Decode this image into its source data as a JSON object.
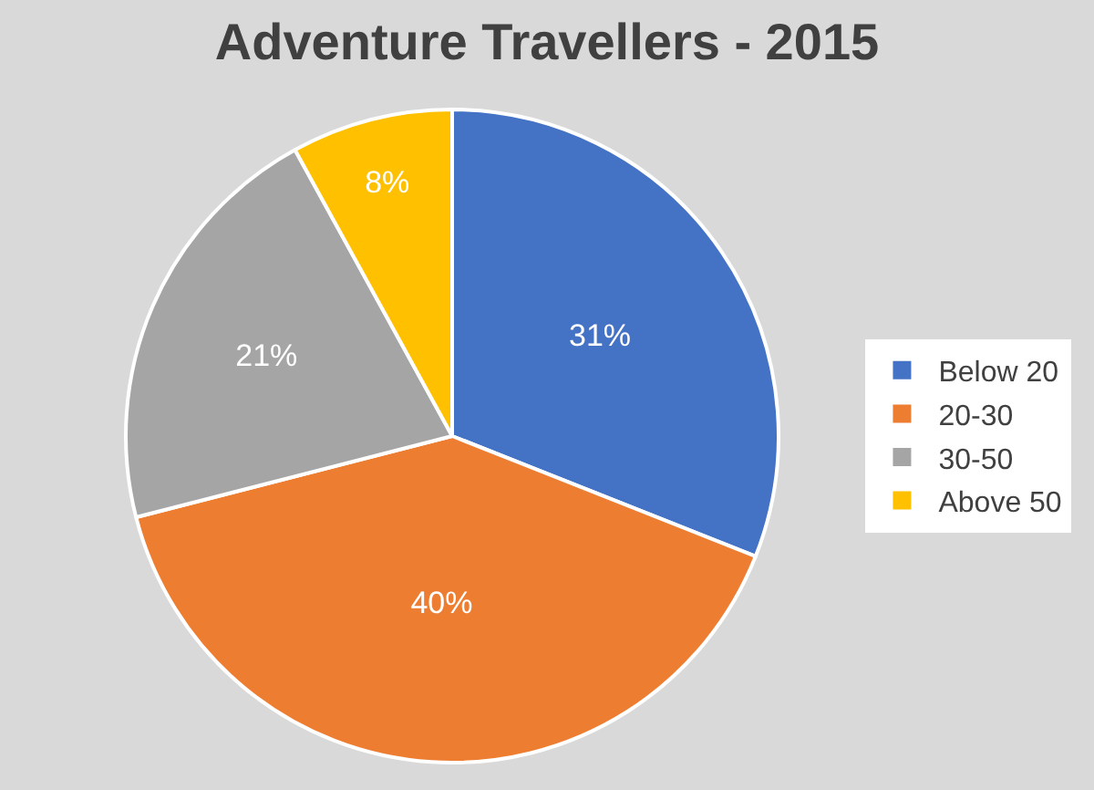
{
  "chart_data": {
    "type": "pie",
    "title": "Adventure Travellers - 2015",
    "categories": [
      "Below 20",
      "20-30",
      "30-50",
      "Above 50"
    ],
    "values": [
      31,
      40,
      21,
      8
    ],
    "value_labels": [
      "31%",
      "40%",
      "21%",
      "8%"
    ],
    "colors": [
      "#4472c4",
      "#ed7d31",
      "#a5a5a5",
      "#ffc000"
    ],
    "legend": "right"
  }
}
